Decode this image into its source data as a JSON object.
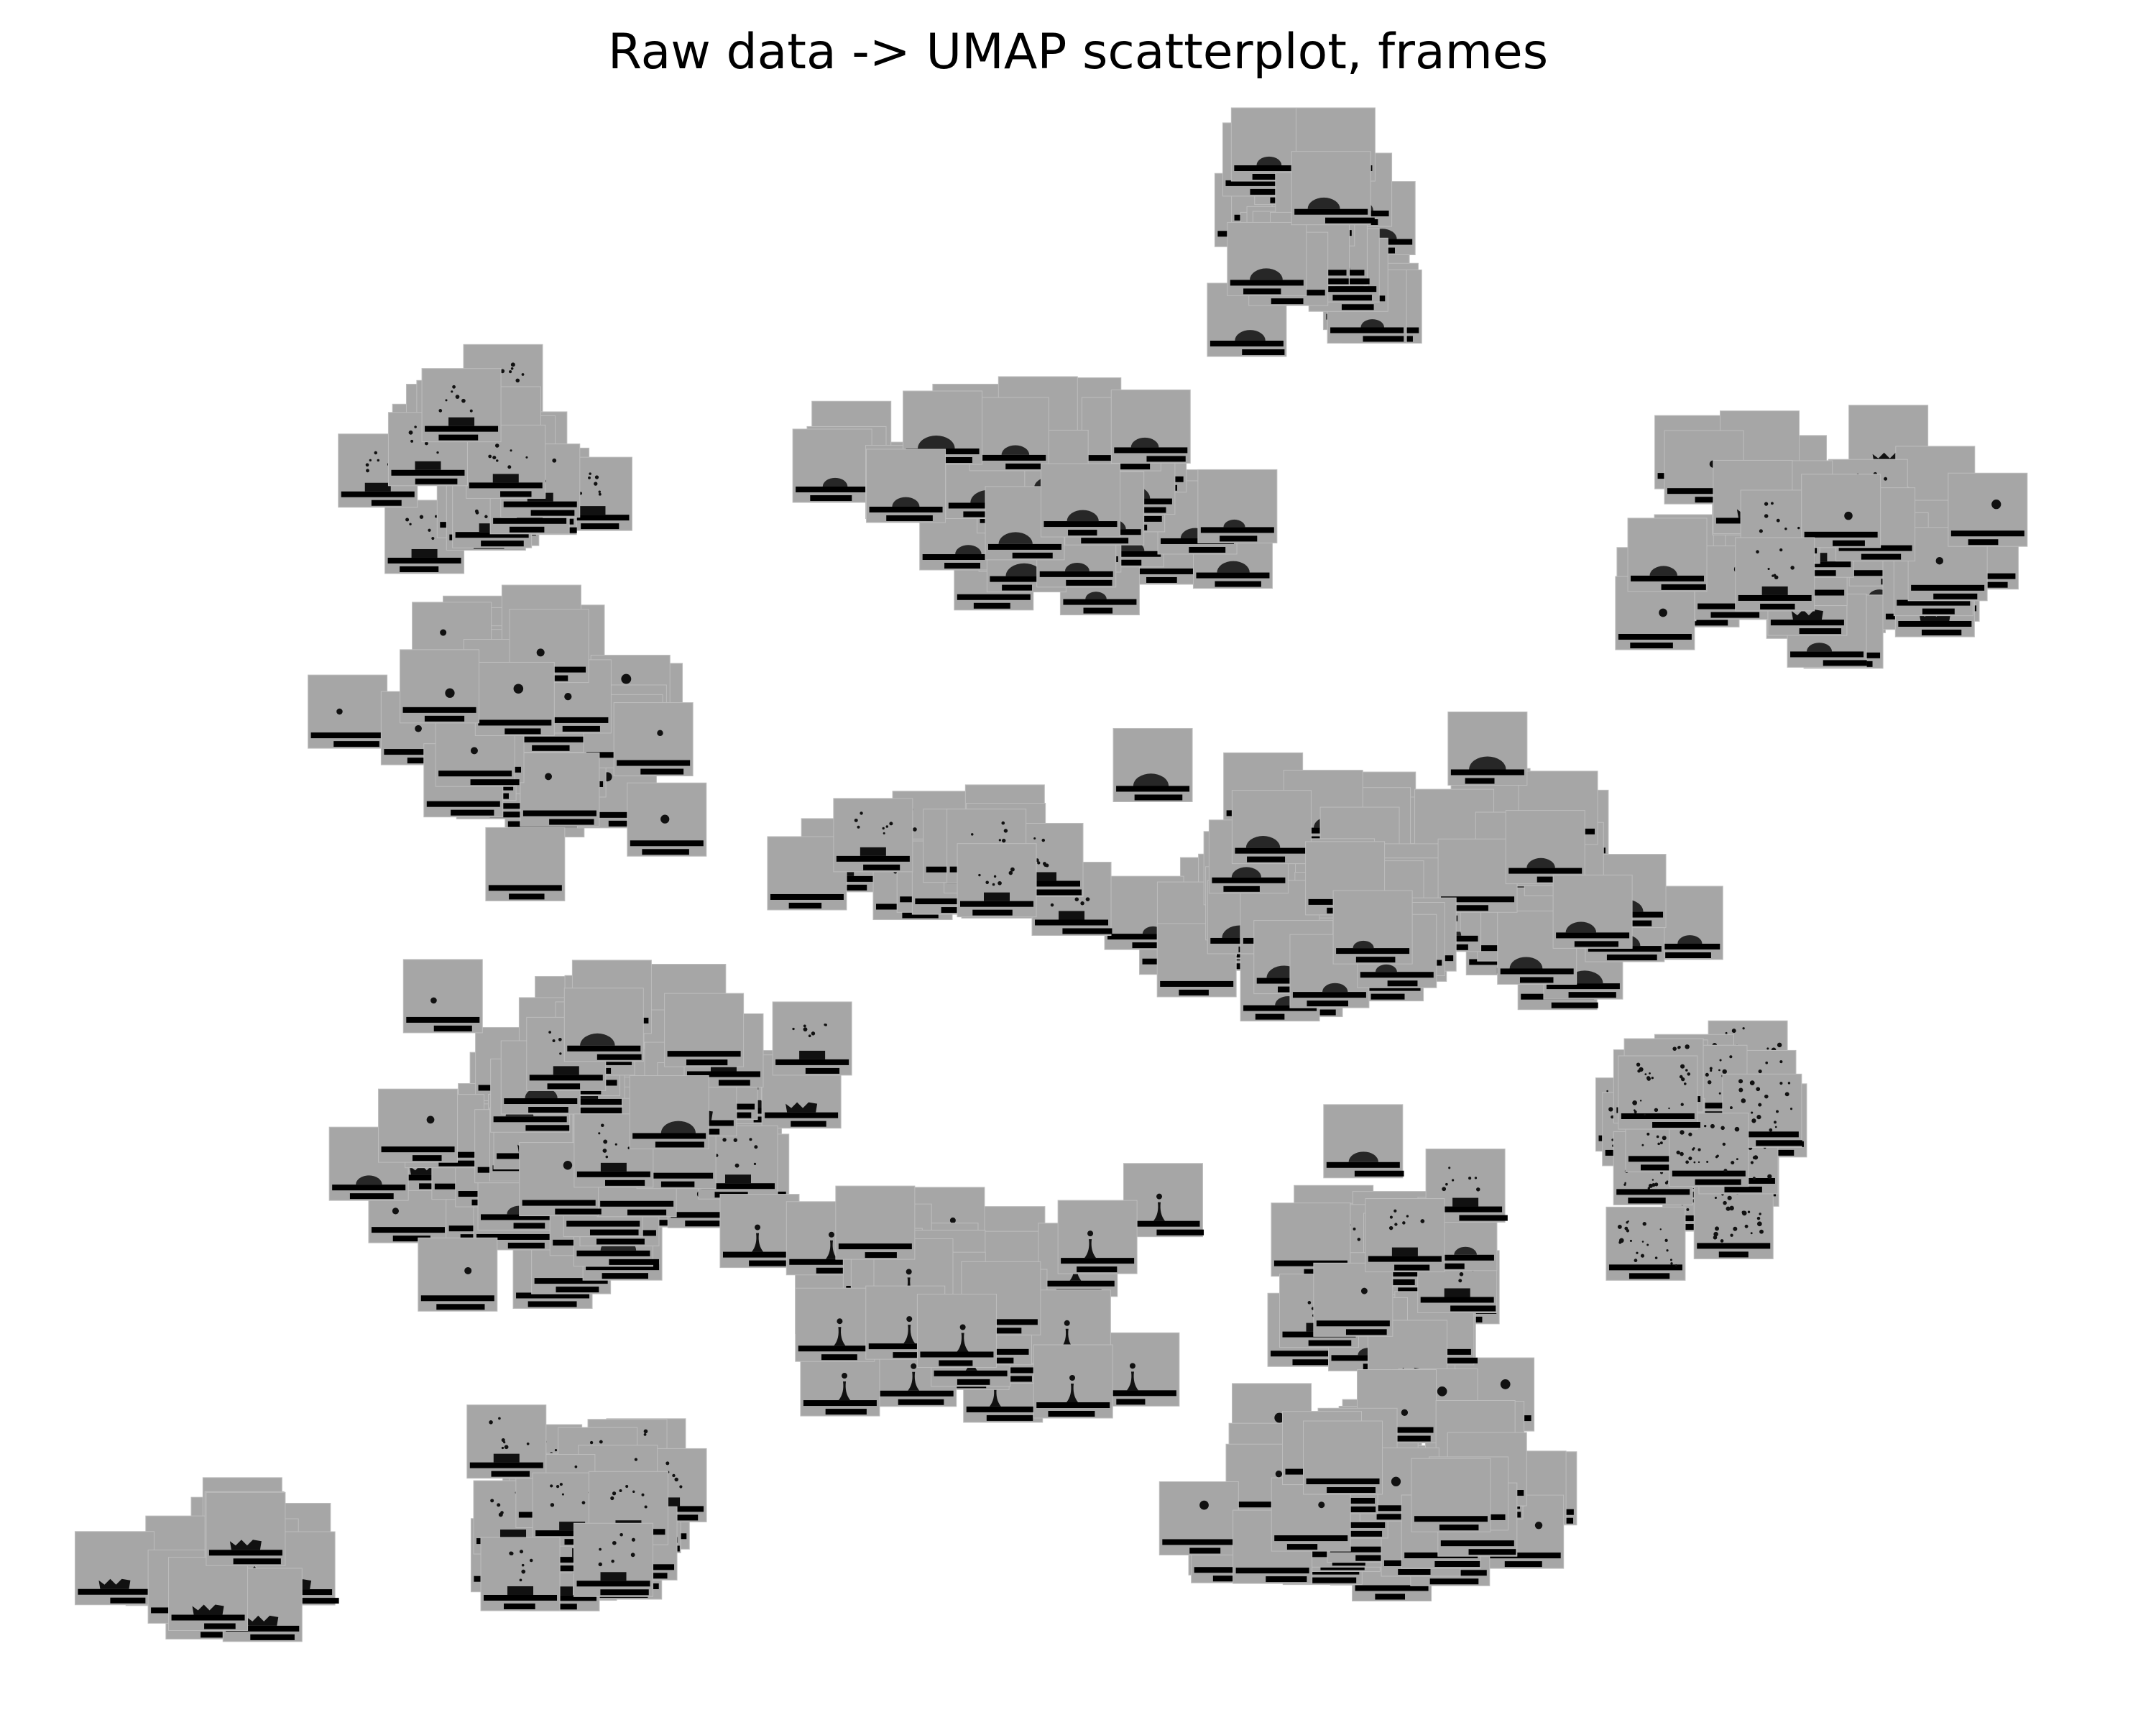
{
  "chart_data": {
    "type": "scatter",
    "title": "Raw data -> UMAP scatterplot, frames",
    "xlabel": "",
    "ylabel": "",
    "axes_visible": false,
    "grid": false,
    "marker": "image thumbnail (grayscale droplet-impact video frame)",
    "colors": {
      "background": "#ffffff",
      "thumbnail": "#a6a6a6",
      "thumbnail_edge": "#bdbdbd",
      "ground": "#000000",
      "droplet": "#111111"
    },
    "clusters": [
      {
        "id": "top-right-domes",
        "center": [
          1830,
          330
        ],
        "spread": [
          120,
          160
        ],
        "n": 34,
        "motif": "dome"
      },
      {
        "id": "upper-middle-domes",
        "center": [
          1450,
          690
        ],
        "spread": [
          260,
          130
        ],
        "n": 44,
        "motif": "dome"
      },
      {
        "id": "upper-left-splash",
        "center": [
          690,
          640
        ],
        "spread": [
          140,
          110
        ],
        "n": 26,
        "motif": "splash"
      },
      {
        "id": "left-drops",
        "center": [
          730,
          1020
        ],
        "spread": [
          200,
          150
        ],
        "n": 44,
        "motif": "drop"
      },
      {
        "id": "far-right-dome-splash",
        "center": [
          2530,
          770
        ],
        "spread": [
          290,
          130
        ],
        "n": 52,
        "motif": "mixed"
      },
      {
        "id": "center-domes",
        "center": [
          1900,
          1230
        ],
        "spread": [
          340,
          140
        ],
        "n": 86,
        "motif": "dome"
      },
      {
        "id": "center-splash-chain",
        "center": [
          1330,
          1200
        ],
        "spread": [
          160,
          70
        ],
        "n": 20,
        "motif": "splash"
      },
      {
        "id": "left-middle-mixed",
        "center": [
          830,
          1580
        ],
        "spread": [
          260,
          230
        ],
        "n": 78,
        "motif": "mixed"
      },
      {
        "id": "center-bottom-jets",
        "center": [
          1350,
          1790
        ],
        "spread": [
          280,
          150
        ],
        "n": 48,
        "motif": "jet"
      },
      {
        "id": "right-spray",
        "center": [
          2350,
          1560
        ],
        "spread": [
          130,
          130
        ],
        "n": 30,
        "motif": "spray"
      },
      {
        "id": "right-middle-mixed",
        "center": [
          1950,
          1780
        ],
        "spread": [
          140,
          180
        ],
        "n": 36,
        "motif": "mixed"
      },
      {
        "id": "bottom-right-drops",
        "center": [
          1940,
          2080
        ],
        "spread": [
          230,
          130
        ],
        "n": 56,
        "motif": "drop"
      },
      {
        "id": "bottom-left-splash",
        "center": [
          820,
          2100
        ],
        "spread": [
          120,
          120
        ],
        "n": 34,
        "motif": "splash"
      },
      {
        "id": "far-left-crowns",
        "center": [
          300,
          2170
        ],
        "spread": [
          110,
          70
        ],
        "n": 18,
        "motif": "crown"
      }
    ]
  }
}
